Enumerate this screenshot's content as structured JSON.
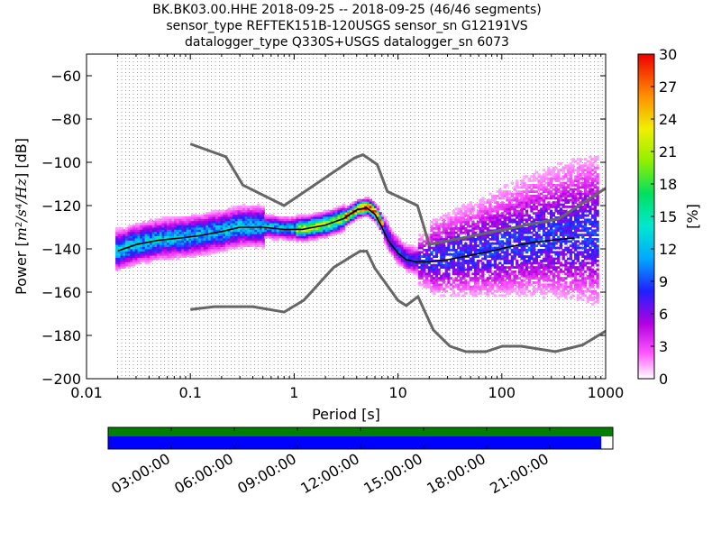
{
  "header": {
    "title_line1": "BK.BK03.00.HHE   2018-09-25 -- 2018-09-25  (46/46 segments)",
    "title_line2": "sensor_type REFTEK151B-120USGS sensor_sn G12191VS",
    "title_line3": "datalogger_type Q330S+USGS datalogger_sn 6073"
  },
  "chart_data": [
    {
      "type": "heatmap",
      "title": "BK.BK03.00.HHE   2018-09-25 -- 2018-09-25  (46/46 segments)",
      "xlabel": "Period [s]",
      "ylabel_prefix": "Power [",
      "ylabel_unit_m": "m",
      "ylabel_unit_sup2": "2",
      "ylabel_unit_s": "/s",
      "ylabel_unit_sup4": "4",
      "ylabel_unit_hz": "/Hz",
      "ylabel_suffix": "] [dB]",
      "xscale": "log",
      "xlim": [
        0.01,
        1000
      ],
      "ylim": [
        -200,
        -50
      ],
      "x_ticks": [
        0.01,
        0.1,
        1,
        10,
        100,
        1000
      ],
      "x_tick_labels": [
        "0.01",
        "0.1",
        "1",
        "10",
        "100",
        "1000"
      ],
      "y_ticks": [
        -200,
        -180,
        -160,
        -140,
        -120,
        -100,
        -80,
        -60
      ],
      "y_tick_labels": [
        "−200",
        "−180",
        "−160",
        "−140",
        "−120",
        "−100",
        "−80",
        "−60"
      ],
      "grid": "dotted vertical lines at period bins",
      "colorbar": {
        "label": "[%]",
        "range": [
          0,
          30
        ],
        "ticks": [
          0,
          3,
          6,
          9,
          12,
          15,
          18,
          21,
          24,
          27,
          30
        ],
        "tick_labels": [
          "0",
          "3",
          "6",
          "9",
          "12",
          "15",
          "18",
          "21",
          "24",
          "27",
          "30"
        ]
      },
      "mean_curve": {
        "x": [
          0.02,
          0.03,
          0.05,
          0.08,
          0.12,
          0.2,
          0.3,
          0.5,
          0.8,
          1.2,
          2,
          3,
          4,
          5,
          6,
          7,
          8,
          10,
          12,
          15,
          20,
          30,
          50,
          80,
          120,
          200,
          300,
          500
        ],
        "y": [
          -141,
          -138,
          -136,
          -135,
          -134,
          -132,
          -130,
          -130,
          -131,
          -131,
          -129,
          -126,
          -122,
          -121,
          -124,
          -130,
          -136,
          -142,
          -145,
          -146,
          -146,
          -145,
          -143,
          -141,
          -139,
          -137,
          -136,
          -135
        ]
      },
      "noise_model_high": {
        "x": [
          0.1,
          0.22,
          0.32,
          0.8,
          3.8,
          4.6,
          6.3,
          7.9,
          15.4,
          20,
          354.8,
          1000
        ],
        "y": [
          -91.5,
          -97.4,
          -110.5,
          -120,
          -98,
          -96.5,
          -101,
          -113.5,
          -120,
          -138,
          -126,
          -112
        ]
      },
      "noise_model_low": {
        "x": [
          0.1,
          0.17,
          0.4,
          0.8,
          1.24,
          2.4,
          4.3,
          5,
          6,
          10,
          12,
          15.6,
          21.9,
          31.6,
          45,
          70,
          101,
          154,
          328,
          600,
          1000
        ],
        "y": [
          -168,
          -166.7,
          -166.7,
          -169.2,
          -163.7,
          -148.6,
          -141.1,
          -141.1,
          -149,
          -163.8,
          -166.2,
          -162.1,
          -177.5,
          -185,
          -187.5,
          -187.5,
          -185,
          -185,
          -187.5,
          -184.4,
          -178
        ]
      }
    },
    {
      "type": "timeline",
      "x_tick_labels": [
        "03:00:00",
        "06:00:00",
        "09:00:00",
        "12:00:00",
        "15:00:00",
        "18:00:00",
        "21:00:00"
      ],
      "x_tick_hours": [
        3,
        6,
        9,
        12,
        15,
        18,
        21
      ],
      "range_hours": [
        0,
        24
      ],
      "coverage_top": {
        "start_hour": 0,
        "end_hour": 24,
        "color": "#008000"
      },
      "coverage_bottom": {
        "start_hour": 0,
        "end_hour": 23.45,
        "color": "#0000ff"
      }
    }
  ],
  "colors": {
    "noise_model": "#666666",
    "mean_curve": "#000000",
    "timeline_top": "#008000",
    "timeline_bottom": "#0000ff"
  }
}
